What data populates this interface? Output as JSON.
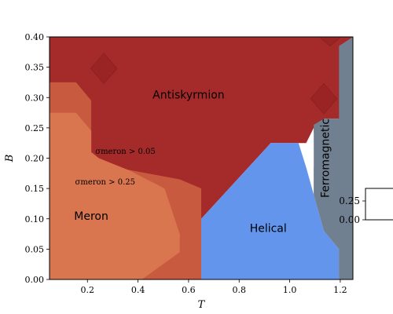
{
  "chart_data": {
    "type": "heatmap",
    "xlabel": "T",
    "ylabel": "B",
    "xlim": [
      0.05,
      1.25
    ],
    "ylim": [
      0.0,
      0.4
    ],
    "xticks": [
      "0.2",
      "0.4",
      "0.6",
      "0.8",
      "1.0",
      "1.2"
    ],
    "xtick_values": [
      0.2,
      0.4,
      0.6,
      0.8,
      1.0,
      1.2
    ],
    "yticks": [
      "0.00",
      "0.05",
      "0.10",
      "0.15",
      "0.20",
      "0.25",
      "0.30",
      "0.35",
      "0.40"
    ],
    "ytick_values": [
      0.0,
      0.05,
      0.1,
      0.15,
      0.2,
      0.25,
      0.3,
      0.35,
      0.4
    ],
    "colors": {
      "antiskyrmion": "#a52a2a",
      "meron_outer": "#c85a3f",
      "meron_inner": "#d97650",
      "helical": "#6495ed",
      "ferromagnetic": "#708090"
    },
    "regions": [
      {
        "name": "Antiskyrmion",
        "color_key": "antiskyrmion",
        "label_at": [
          0.6,
          0.305
        ],
        "polygon": [
          [
            0.05,
            0.4
          ],
          [
            1.25,
            0.4
          ],
          [
            1.25,
            0.0
          ],
          [
            1.195,
            0.0
          ],
          [
            1.195,
            0.265
          ],
          [
            1.135,
            0.265
          ],
          [
            1.065,
            0.225
          ],
          [
            0.925,
            0.225
          ],
          [
            0.65,
            0.1
          ],
          [
            0.65,
            0.0
          ],
          [
            0.05,
            0.0
          ]
        ]
      },
      {
        "name": "",
        "color_key": "meron_outer",
        "polygon": [
          [
            0.05,
            0.325
          ],
          [
            0.155,
            0.325
          ],
          [
            0.215,
            0.295
          ],
          [
            0.215,
            0.21
          ],
          [
            0.245,
            0.19
          ],
          [
            0.565,
            0.165
          ],
          [
            0.65,
            0.15
          ],
          [
            0.65,
            0.0
          ],
          [
            0.05,
            0.0
          ]
        ]
      },
      {
        "name": "Meron",
        "color_key": "meron_inner",
        "label_at": [
          0.215,
          0.105
        ],
        "polygon": [
          [
            0.05,
            0.275
          ],
          [
            0.155,
            0.275
          ],
          [
            0.215,
            0.245
          ],
          [
            0.215,
            0.21
          ],
          [
            0.245,
            0.2
          ],
          [
            0.365,
            0.18
          ],
          [
            0.505,
            0.15
          ],
          [
            0.565,
            0.075
          ],
          [
            0.565,
            0.045
          ],
          [
            0.415,
            0.0
          ],
          [
            0.05,
            0.0
          ]
        ]
      },
      {
        "name": "Helical",
        "color_key": "helical",
        "label_at": [
          0.915,
          0.085
        ],
        "polygon": [
          [
            0.65,
            0.1
          ],
          [
            0.925,
            0.225
          ],
          [
            1.035,
            0.225
          ],
          [
            1.065,
            0.185
          ],
          [
            1.095,
            0.14
          ],
          [
            1.135,
            0.08
          ],
          [
            1.195,
            0.05
          ],
          [
            1.195,
            0.0
          ],
          [
            0.65,
            0.0
          ]
        ]
      },
      {
        "name": "Ferromagnetic",
        "color_key": "ferromagnetic",
        "label_at": [
          1.155,
          0.2
        ],
        "polygon": [
          [
            1.195,
            0.385
          ],
          [
            1.25,
            0.4
          ],
          [
            1.25,
            0.0
          ],
          [
            1.195,
            0.0
          ],
          [
            1.195,
            0.05
          ],
          [
            1.135,
            0.08
          ],
          [
            1.095,
            0.14
          ],
          [
            1.095,
            0.255
          ],
          [
            1.135,
            0.265
          ],
          [
            1.195,
            0.265
          ]
        ]
      },
      {
        "name": "",
        "color_key": "white",
        "polygon": [
          [
            1.065,
            0.225
          ],
          [
            1.095,
            0.25
          ],
          [
            1.095,
            0.185
          ],
          [
            1.065,
            0.185
          ]
        ]
      }
    ],
    "diamonds": [
      {
        "x": 0.265,
        "y": 0.348,
        "rx": 0.052,
        "ry": 0.025
      },
      {
        "x": 1.135,
        "y": 0.298,
        "rx": 0.052,
        "ry": 0.025
      },
      {
        "x": 1.16,
        "y": 0.4,
        "rx": 0.042,
        "ry": 0.015
      }
    ],
    "annotations": [
      {
        "text": "σmeron > 0.05",
        "x": 0.35,
        "y": 0.212
      },
      {
        "text": "σmeron > 0.25",
        "x": 0.27,
        "y": 0.162
      }
    ],
    "colorbar": {
      "ticks": [
        "0.25",
        "0.00"
      ],
      "tick_values": [
        0.25,
        0.0
      ],
      "range": [
        -0.1,
        0.4
      ]
    }
  }
}
